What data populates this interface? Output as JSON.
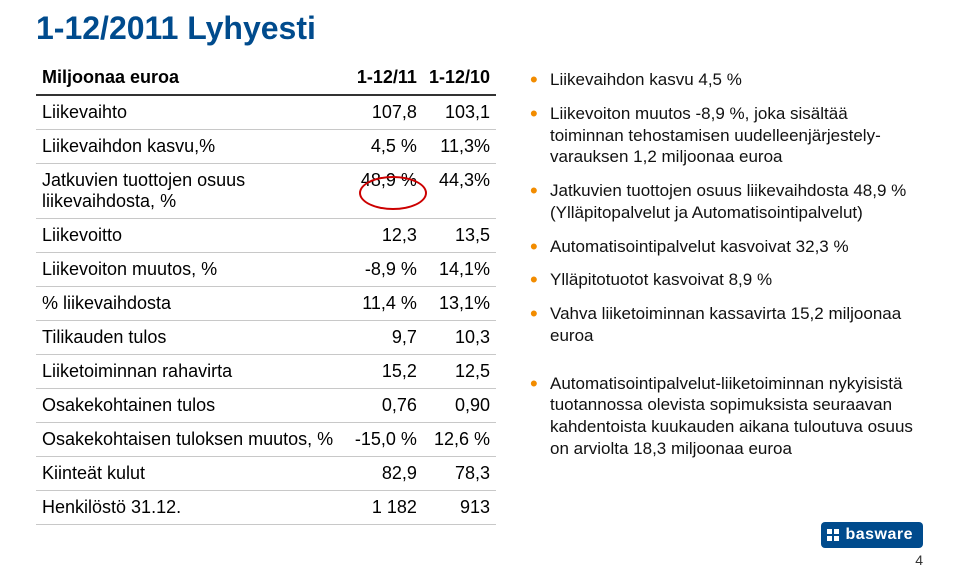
{
  "title": "1-12/2011 Lyhyesti",
  "table": {
    "header": {
      "c0": "Miljoonaa euroa",
      "c1": "1-12/11",
      "c2": "1-12/10"
    },
    "rows": [
      {
        "label": "Liikevaihto",
        "c1": "107,8",
        "c2": "103,1"
      },
      {
        "label": "Liikevaihdon kasvu,%",
        "c1": "4,5 %",
        "c2": "11,3%"
      },
      {
        "label": "Jatkuvien tuottojen osuus liikevaihdosta, %",
        "c1": "48,9 %",
        "c2": "44,3%"
      },
      {
        "label": "Liikevoitto",
        "c1": "12,3",
        "c2": "13,5"
      },
      {
        "label": "Liikevoiton muutos, %",
        "c1": "-8,9 %",
        "c2": "14,1%"
      },
      {
        "label": "% liikevaihdosta",
        "c1": "11,4 %",
        "c2": "13,1%"
      },
      {
        "label": "Tilikauden tulos",
        "c1": "9,7",
        "c2": "10,3"
      },
      {
        "label": "Liiketoiminnan rahavirta",
        "c1": "15,2",
        "c2": "12,5"
      },
      {
        "label": "Osakekohtainen tulos",
        "c1": "0,76",
        "c2": "0,90"
      },
      {
        "label": "Osakekohtaisen tuloksen muutos, %",
        "c1": "-15,0 %",
        "c2": "12,6 %"
      },
      {
        "label": "Kiinteät kulut",
        "c1": "82,9",
        "c2": "78,3"
      },
      {
        "label": "Henkilöstö 31.12.",
        "c1": "1 182",
        "c2": "913"
      }
    ],
    "circle": {
      "row_index": 2,
      "col": "c1",
      "color": "#cc0000"
    }
  },
  "bullets": [
    "Liikevaihdon kasvu 4,5 %",
    "Liikevoiton muutos -8,9 %, joka sisältää toiminnan tehostamisen uudelleenjärjestely-varauksen 1,2 miljoonaa euroa",
    "Jatkuvien tuottojen osuus liikevaihdosta 48,9 % (Ylläpitopalvelut ja Automatisointipalvelut)",
    "Automatisointipalvelut kasvoivat 32,3 %",
    "Ylläpitotuotot kasvoivat 8,9 %",
    "Vahva liiketoiminnan kassavirta 15,2 miljoonaa euroa",
    "Automatisointipalvelut-liiketoiminnan nykyisistä tuotannossa olevista sopimuksista seuraavan kahdentoista kuukauden aikana tuloutuva osuus on arviolta 18,3 miljoonaa euroa"
  ],
  "logo_text": "basware",
  "page_number": "4",
  "colors": {
    "title": "#004b8d",
    "bullet": "#f28c00",
    "logo_bg": "#004b8d",
    "logo_fg": "#ffffff",
    "header_rule": "#333333",
    "row_rule": "#c8c8c8"
  }
}
